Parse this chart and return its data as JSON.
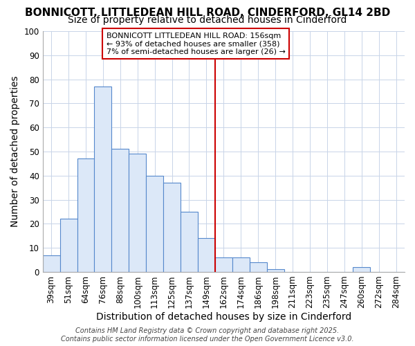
{
  "title1": "BONNICOTT, LITTLEDEAN HILL ROAD, CINDERFORD, GL14 2BD",
  "title2": "Size of property relative to detached houses in Cinderford",
  "xlabel": "Distribution of detached houses by size in Cinderford",
  "ylabel": "Number of detached properties",
  "bar_labels": [
    "39sqm",
    "51sqm",
    "64sqm",
    "76sqm",
    "88sqm",
    "100sqm",
    "113sqm",
    "125sqm",
    "137sqm",
    "149sqm",
    "162sqm",
    "174sqm",
    "186sqm",
    "198sqm",
    "211sqm",
    "223sqm",
    "235sqm",
    "247sqm",
    "260sqm",
    "272sqm",
    "284sqm"
  ],
  "bar_heights": [
    7,
    22,
    47,
    77,
    51,
    49,
    40,
    37,
    25,
    14,
    6,
    6,
    4,
    1,
    0,
    0,
    0,
    0,
    2,
    0,
    0
  ],
  "bar_color": "#dce8f8",
  "bar_edge_color": "#5588cc",
  "grid_color": "#c8d4e8",
  "bg_color": "#ffffff",
  "fig_bg_color": "#ffffff",
  "vline_x_index": 10,
  "vline_color": "#cc0000",
  "annotation_text": "BONNICOTT LITTLEDEAN HILL ROAD: 156sqm\n← 93% of detached houses are smaller (358)\n7% of semi-detached houses are larger (26) →",
  "annotation_box_color": "#ffffff",
  "annotation_box_edge": "#cc0000",
  "ylim": [
    0,
    100
  ],
  "yticks": [
    0,
    10,
    20,
    30,
    40,
    50,
    60,
    70,
    80,
    90,
    100
  ],
  "footer": "Contains HM Land Registry data © Crown copyright and database right 2025.\nContains public sector information licensed under the Open Government Licence v3.0.",
  "title1_fontsize": 11,
  "title2_fontsize": 10,
  "tick_fontsize": 8.5,
  "ylabel_fontsize": 10,
  "xlabel_fontsize": 10,
  "annotation_fontsize": 8,
  "footer_fontsize": 7
}
